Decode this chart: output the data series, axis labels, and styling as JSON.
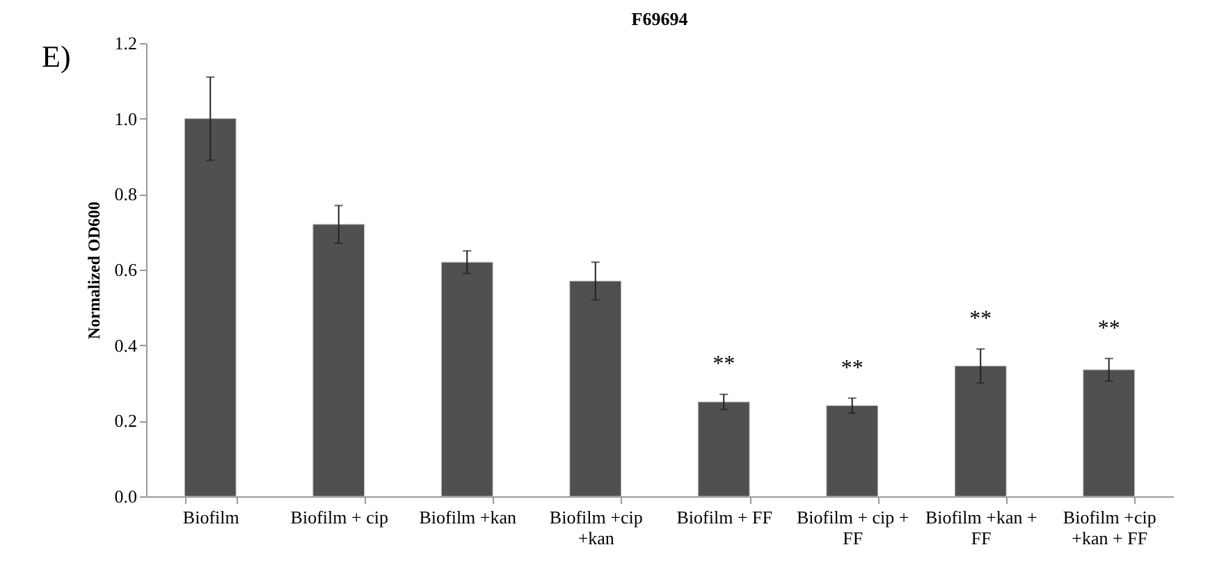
{
  "chart_data": {
    "type": "bar",
    "title": "F69694",
    "ylabel": "Normalized OD600",
    "categories": [
      "Biofilm",
      "Biofilm + cip",
      "Biofilm +kan",
      "Biofilm +cip +kan",
      "Biofilm + FF",
      "Biofilm + cip + FF",
      "Biofilm +kan + FF",
      "Biofilm +cip +kan + FF"
    ],
    "values": [
      1.0,
      0.72,
      0.62,
      0.57,
      0.25,
      0.24,
      0.345,
      0.335
    ],
    "errors": [
      0.11,
      0.05,
      0.03,
      0.05,
      0.02,
      0.02,
      0.045,
      0.03
    ],
    "color": "#505050",
    "ylim": [
      0,
      1.2
    ],
    "yticks": [
      {
        "value": 0,
        "label": "0.0"
      },
      {
        "value": 0.2,
        "label": "0.2"
      },
      {
        "value": 0.4,
        "label": "0.4"
      },
      {
        "value": 0.6,
        "label": "0.6"
      },
      {
        "value": 0.8,
        "label": "0.8"
      },
      {
        "value": 1.0,
        "label": "1.0"
      },
      {
        "value": 1.2,
        "label": "1.2"
      }
    ],
    "grid": false,
    "value_labels": [
      null,
      null,
      null,
      null,
      "**",
      "**",
      "**",
      "**"
    ],
    "annotations": [
      "E)"
    ]
  }
}
